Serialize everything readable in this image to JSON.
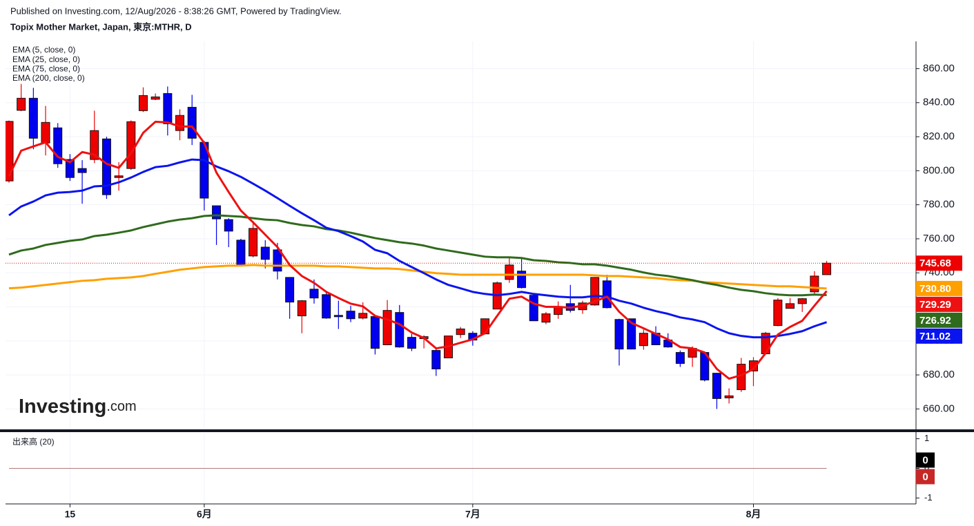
{
  "header": {
    "published": "Published on Investing.com, 12/Aug/2026 - 8:38:26 GMT, Powered by TradingView.",
    "logo": {
      "main": "Investing",
      "suffix": ".com"
    }
  },
  "chart_data": {
    "type": "candlestick",
    "title": "Topix Mother Market, Japan, 東京:MTHR, D",
    "categories": [
      null,
      null,
      null,
      null,
      null,
      "15",
      null,
      null,
      null,
      null,
      null,
      null,
      null,
      null,
      null,
      null,
      "6月",
      null,
      null,
      null,
      null,
      null,
      null,
      null,
      null,
      null,
      null,
      null,
      null,
      null,
      null,
      null,
      null,
      null,
      null,
      null,
      null,
      null,
      "7月",
      null,
      null,
      null,
      null,
      null,
      null,
      null,
      null,
      null,
      null,
      null,
      null,
      null,
      null,
      null,
      null,
      null,
      null,
      null,
      null,
      null,
      null,
      "8月",
      null,
      null,
      null,
      null,
      null,
      null
    ],
    "open": [
      794,
      835.5,
      842.6,
      816.3,
      825.2,
      806.6,
      801.3,
      806.6,
      818.7,
      796,
      801.3,
      835.3,
      842,
      845.4,
      823.6,
      837.3,
      816.7,
      779.4,
      771.3,
      759.2,
      749.9,
      755.1,
      753.5,
      737.3,
      714.7,
      730.4,
      727.2,
      715,
      717.5,
      713.4,
      714.3,
      697.7,
      716.7,
      702.1,
      701.3,
      694.4,
      690,
      703.7,
      704.5,
      704.1,
      718.7,
      736.1,
      741,
      726.8,
      711,
      715.5,
      721.9,
      718.3,
      721.1,
      735.3,
      712.6,
      713,
      697.2,
      704.5,
      700.5,
      693.2,
      690.4,
      693.2,
      681,
      666.5,
      671.3,
      682.3,
      692.4,
      709,
      719.1,
      721.9,
      728.8,
      738.9
    ],
    "high": [
      829.5,
      851,
      848.7,
      838.1,
      828,
      809.8,
      806.2,
      835.3,
      820,
      805,
      829.6,
      849,
      845.4,
      849.5,
      836.1,
      844.6,
      817.5,
      779.5,
      772.1,
      760,
      770.5,
      759.2,
      757.6,
      737.5,
      724,
      736.1,
      728.4,
      723.6,
      720.7,
      722.7,
      714.5,
      724,
      721.1,
      704.1,
      703.3,
      695.2,
      703,
      708.2,
      705.7,
      713,
      734.9,
      749.5,
      748.3,
      728,
      717,
      723.2,
      732.9,
      723.6,
      737.5,
      738.9,
      713,
      713.1,
      706.6,
      708.6,
      704.5,
      694.4,
      696.8,
      693.3,
      681.2,
      672.1,
      690,
      690.4,
      705.3,
      725.2,
      725.2,
      725.2,
      741,
      747
    ],
    "low": [
      793,
      835,
      812.6,
      809,
      801.7,
      794,
      780.6,
      804.5,
      783.5,
      788.3,
      800.5,
      834.5,
      841.5,
      820.7,
      817.9,
      815.1,
      776.6,
      756.4,
      755.1,
      743.8,
      749.1,
      742.6,
      736.1,
      713,
      704.5,
      721.9,
      713,
      707,
      711,
      712.6,
      692,
      697.7,
      696,
      694,
      695.6,
      679.4,
      689.8,
      701.7,
      697.2,
      704,
      718.7,
      734.1,
      730.8,
      711.8,
      709.8,
      713,
      716.7,
      715.9,
      720.7,
      719.1,
      685.5,
      695,
      694.8,
      697.5,
      696,
      684.7,
      684.7,
      676.2,
      660,
      663.2,
      670,
      673.4,
      692,
      708.6,
      719,
      717,
      727.6,
      738.9
    ],
    "close": [
      829,
      842.6,
      819.1,
      828.4,
      804.1,
      796,
      798.9,
      823.6,
      785.9,
      797,
      828.8,
      844.2,
      843.4,
      827.6,
      832.5,
      819.1,
      783.9,
      771.7,
      764.5,
      744.2,
      766.1,
      747.9,
      741,
      722.8,
      723.6,
      725.2,
      713.4,
      714.2,
      713,
      716.2,
      695.6,
      717.9,
      696.4,
      695.6,
      702.5,
      683.5,
      702.9,
      707,
      700.5,
      713,
      734.1,
      744.6,
      731.3,
      711.8,
      715.9,
      719.9,
      717.9,
      722.3,
      737.3,
      719.5,
      695.2,
      695.2,
      704.5,
      697.7,
      696.4,
      686.7,
      695.6,
      677,
      666.1,
      667.7,
      686.3,
      688.3,
      704.5,
      724,
      721.9,
      724.8,
      738.1,
      745.68
    ],
    "last_label": "745.68",
    "up_color": "#ee0000",
    "down_color": "#0000ee",
    "series": [
      {
        "name": "EMA (5, close, 0)",
        "color": "#ee1111",
        "last_label": "729.29",
        "values": [
          796.8,
          811.8,
          814.3,
          816.7,
          808.2,
          805,
          811,
          809.4,
          804.1,
          801.7,
          810.2,
          822.3,
          828.8,
          828.4,
          826,
          826,
          816.3,
          798.9,
          787.5,
          776.6,
          769.7,
          762.4,
          755.1,
          744.6,
          738.1,
          734.1,
          728.8,
          725.2,
          721.9,
          720.3,
          714.7,
          712.6,
          709.8,
          704.9,
          701.7,
          695.6,
          696.8,
          698.9,
          700.9,
          704.5,
          714.7,
          724.8,
          726,
          721.9,
          720,
          720,
          719.5,
          720.7,
          723.2,
          726,
          717.1,
          710.6,
          707.4,
          704.1,
          700.9,
          696.4,
          695.6,
          693.2,
          683.5,
          677.8,
          679.8,
          683.5,
          692.8,
          703.7,
          708.2,
          711.8,
          720.7,
          729.29
        ]
      },
      {
        "name": "EMA (25, close, 0)",
        "color": "#0a14ee",
        "last_label": "711.02",
        "values": [
          773.8,
          779,
          781.9,
          785.5,
          787.1,
          787.5,
          788.3,
          790.8,
          791.2,
          793.2,
          796,
          799.3,
          802.1,
          802.9,
          804.9,
          806.6,
          806.2,
          802.5,
          799.7,
          796.4,
          792.4,
          788.3,
          783.9,
          779.4,
          775,
          770.9,
          766.5,
          764.5,
          761.6,
          758.4,
          753.5,
          751.5,
          747,
          743.4,
          739.8,
          736.1,
          732.9,
          730.9,
          728.8,
          727.6,
          726.8,
          727.6,
          728.8,
          727.6,
          726.8,
          726,
          725.6,
          725.6,
          726.4,
          726,
          723.6,
          721.9,
          719.5,
          717.5,
          715.9,
          713.8,
          712.6,
          711,
          707.4,
          704.5,
          702.9,
          702.1,
          702.1,
          702.9,
          704.1,
          705.7,
          708.6,
          711.02
        ]
      },
      {
        "name": "EMA (75, close, 0)",
        "color": "#2f6b1c",
        "last_label": "726.92",
        "values": [
          750.7,
          753.1,
          754.3,
          756.4,
          757.6,
          758.8,
          759.6,
          761.6,
          762.4,
          763.6,
          764.9,
          766.9,
          768.5,
          770.1,
          771.3,
          772.1,
          773.4,
          773.8,
          773.4,
          773,
          772.1,
          771.3,
          770.9,
          769.3,
          768.1,
          767.3,
          765.7,
          764.9,
          763.6,
          762,
          760.4,
          759.2,
          758,
          757.2,
          756,
          754.3,
          753.1,
          751.9,
          750.7,
          749.5,
          749.1,
          749.1,
          748.7,
          747.4,
          747,
          746.2,
          745.8,
          745,
          745,
          744.2,
          743,
          741.8,
          740.2,
          738.9,
          738.1,
          736.9,
          735.7,
          734.1,
          732.9,
          731.3,
          730,
          729.2,
          728,
          727.2,
          726.8,
          726.8,
          727.2,
          726.92
        ]
      },
      {
        "name": "EMA (200, close, 0)",
        "color": "#ffa000",
        "last_label": "730.80",
        "values": [
          730.9,
          731.3,
          732.1,
          732.9,
          733.7,
          734.5,
          735.3,
          735.7,
          736.5,
          736.9,
          737.3,
          738.1,
          739.4,
          740.6,
          741.8,
          742.6,
          743.4,
          743.8,
          744.2,
          744.2,
          744.6,
          744.2,
          744.2,
          744.2,
          744.2,
          744.2,
          743.8,
          743.8,
          743.4,
          743,
          742.6,
          742.6,
          742.2,
          741.4,
          740.6,
          739.8,
          739.4,
          738.9,
          738.9,
          738.9,
          738.9,
          738.9,
          738.9,
          738.9,
          738.9,
          738.9,
          738.9,
          738.9,
          738.5,
          738.1,
          738.1,
          737.7,
          737.3,
          736.9,
          736.1,
          735.7,
          735.3,
          734.5,
          734.1,
          733.7,
          733.3,
          732.9,
          732.5,
          732.1,
          732.1,
          731.6,
          731.2,
          730.8
        ]
      }
    ],
    "ylim": [
      648,
      876
    ],
    "yticks": [
      {
        "value": 660,
        "label": "660.00"
      },
      {
        "value": 680,
        "label": "680.00"
      },
      {
        "value": 700,
        "label": "700.00"
      },
      {
        "value": 720,
        "label": "720.00"
      },
      {
        "value": 740,
        "label": "740.00"
      },
      {
        "value": 760,
        "label": "760.00"
      },
      {
        "value": 780,
        "label": "780.00"
      },
      {
        "value": 800,
        "label": "800.00"
      },
      {
        "value": 820,
        "label": "820.00"
      },
      {
        "value": 840,
        "label": "840.00"
      },
      {
        "value": 860,
        "label": "860.00"
      }
    ],
    "grid": true,
    "volume": {
      "title": "出来高 (20)",
      "ylim": [
        -1.2,
        1.2
      ],
      "yticks": [
        1,
        0,
        -1
      ],
      "series": [
        {
          "color": "#000000",
          "values": [
            0,
            0,
            0,
            0,
            0,
            0,
            0,
            0,
            0,
            0,
            0,
            0,
            0,
            0,
            0,
            0,
            0,
            0,
            0,
            0,
            0,
            0,
            0,
            0,
            0,
            0,
            0,
            0,
            0,
            0,
            0,
            0,
            0,
            0,
            0,
            0,
            0,
            0,
            0,
            0,
            0,
            0,
            0,
            0,
            0,
            0,
            0,
            0,
            0,
            0,
            0,
            0,
            0,
            0,
            0,
            0,
            0,
            0,
            0,
            0,
            0,
            0,
            0,
            0,
            0,
            0,
            0,
            0
          ]
        },
        {
          "color": "#c62828",
          "values": [
            0,
            0,
            0,
            0,
            0,
            0,
            0,
            0,
            0,
            0,
            0,
            0,
            0,
            0,
            0,
            0,
            0,
            0,
            0,
            0,
            0,
            0,
            0,
            0,
            0,
            0,
            0,
            0,
            0,
            0,
            0,
            0,
            0,
            0,
            0,
            0,
            0,
            0,
            0,
            0,
            0,
            0,
            0,
            0,
            0,
            0,
            0,
            0,
            0,
            0,
            0,
            0,
            0,
            0,
            0,
            0,
            0,
            0,
            0,
            0,
            0,
            0,
            0,
            0,
            0,
            0,
            0,
            0
          ]
        }
      ]
    }
  }
}
